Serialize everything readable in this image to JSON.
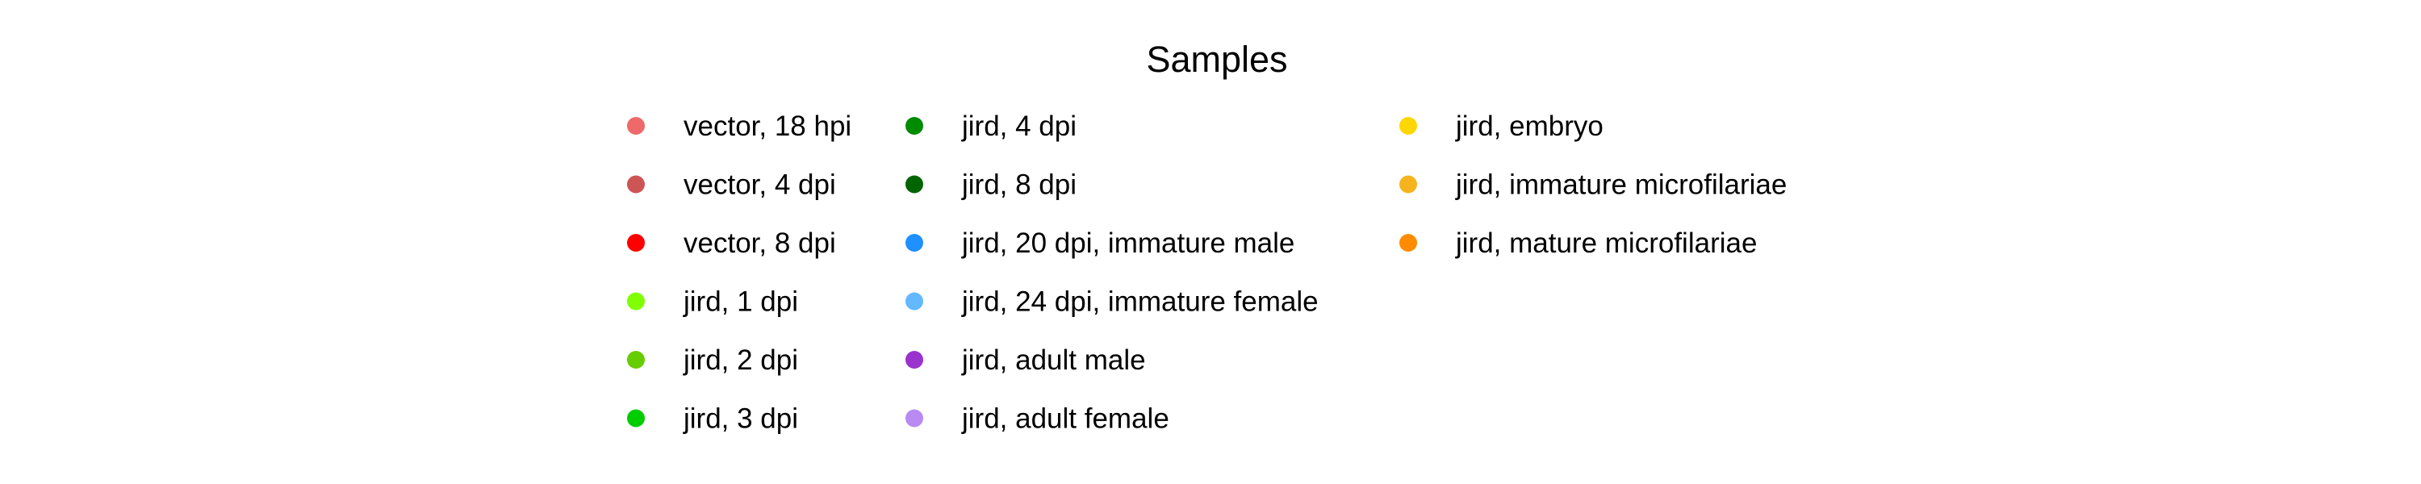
{
  "chart_data": {
    "type": "legend",
    "title": "Samples",
    "entries": [
      {
        "label": "vector, 18 hpi",
        "color": "#EE6A6A"
      },
      {
        "label": "vector, 4 dpi",
        "color": "#CD5555"
      },
      {
        "label": "vector, 8 dpi",
        "color": "#FF0000"
      },
      {
        "label": "jird, 1 dpi",
        "color": "#7FFF00"
      },
      {
        "label": "jird, 2 dpi",
        "color": "#66CD00"
      },
      {
        "label": "jird, 3 dpi",
        "color": "#00CD00"
      },
      {
        "label": "jird, 4 dpi",
        "color": "#008B00"
      },
      {
        "label": "jird, 8 dpi",
        "color": "#006400"
      },
      {
        "label": "jird, 20 dpi, immature male",
        "color": "#1E90FF"
      },
      {
        "label": "jird, 24 dpi, immature female",
        "color": "#63B8FF"
      },
      {
        "label": "jird, adult male",
        "color": "#9A32CD"
      },
      {
        "label": "jird, adult female",
        "color": "#B98AF2"
      },
      {
        "label": "jird, embryo",
        "color": "#FFD700"
      },
      {
        "label": "jird, immature microfilariae",
        "color": "#F5B41E"
      },
      {
        "label": "jird, mature microfilariae",
        "color": "#FF8C00"
      }
    ],
    "columns": 3,
    "rows_per_column": 6
  }
}
